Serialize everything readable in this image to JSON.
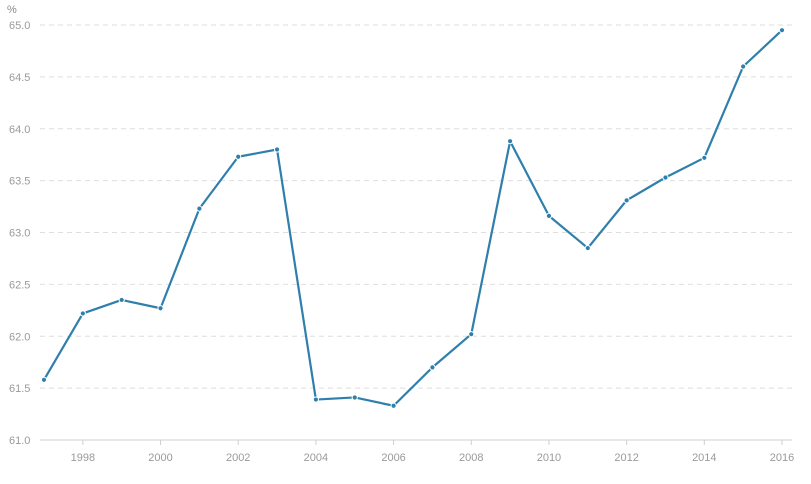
{
  "chart_data": {
    "type": "line",
    "title": "",
    "xlabel": "",
    "ylabel": "%",
    "x": [
      1997,
      1998,
      1999,
      2000,
      2001,
      2002,
      2003,
      2004,
      2005,
      2006,
      2007,
      2008,
      2009,
      2010,
      2011,
      2012,
      2013,
      2014,
      2015,
      2016
    ],
    "series": [
      {
        "values": [
          61.58,
          62.22,
          62.35,
          62.27,
          63.23,
          63.73,
          63.8,
          61.39,
          61.41,
          61.33,
          61.7,
          62.02,
          63.88,
          63.16,
          62.85,
          63.31,
          63.53,
          63.72,
          64.6,
          64.95
        ],
        "color": "#2f7fac"
      }
    ],
    "xlim": [
      1997,
      2016
    ],
    "ylim": [
      61.0,
      65.0
    ],
    "x_ticks": [
      "1998",
      "2000",
      "2002",
      "2004",
      "2006",
      "2008",
      "2010",
      "2012",
      "2014",
      "2016"
    ],
    "y_ticks": [
      "61.0",
      "61.5",
      "62.0",
      "62.5",
      "63.0",
      "63.5",
      "64.0",
      "64.5",
      "65.0"
    ],
    "grid": true,
    "legend": "none"
  }
}
